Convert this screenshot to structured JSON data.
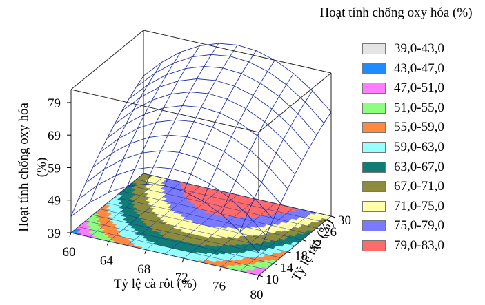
{
  "chart_data": {
    "type": "surface3d",
    "legend_title": "Hoạt tính chống oxy hóa (%)",
    "xlabel": "Tỷ lệ cà rôt (%)",
    "ylabel": "Tỷ lệ táo (%)",
    "zlabel": "Hoạt tính chống oxy hóa (%)",
    "x_ticks": [
      60,
      64,
      68,
      72,
      76,
      80
    ],
    "y_ticks": [
      10,
      14,
      18,
      22,
      26,
      30
    ],
    "z_ticks": [
      39,
      49,
      59,
      69,
      79
    ],
    "xlim": [
      60,
      80
    ],
    "ylim": [
      10,
      30
    ],
    "zlim": [
      39,
      83
    ],
    "legend_placement": "right",
    "legend": [
      {
        "label": "39,0-43,0",
        "color": "#e4e4e4"
      },
      {
        "label": "43,0-47,0",
        "color": "#1e8cff"
      },
      {
        "label": "47,0-51,0",
        "color": "#ff7bff"
      },
      {
        "label": "51,0-55,0",
        "color": "#8cff7d"
      },
      {
        "label": "55,0-59,0",
        "color": "#ff8a3d"
      },
      {
        "label": "59,0-63,0",
        "color": "#96ffff"
      },
      {
        "label": "63,0-67,0",
        "color": "#127c74"
      },
      {
        "label": "67,0-71,0",
        "color": "#8c8c3c"
      },
      {
        "label": "71,0-75,0",
        "color": "#ffffa8"
      },
      {
        "label": "75,0-79,0",
        "color": "#7a7aff"
      },
      {
        "label": "79,0-83,0",
        "color": "#ff6b6b"
      }
    ],
    "surface": {
      "x": [
        60,
        62,
        64,
        66,
        68,
        70,
        72,
        74,
        76,
        78,
        80
      ],
      "y": [
        10,
        12,
        14,
        16,
        18,
        20,
        22,
        24,
        26,
        28,
        30
      ],
      "z": [
        [
          44.0,
          49.6,
          54.0,
          57.2,
          59.2,
          60.0,
          59.6,
          58.0,
          55.2,
          51.2,
          46.0
        ],
        [
          47.4,
          53.0,
          57.4,
          60.6,
          62.6,
          63.4,
          63.0,
          61.4,
          58.6,
          54.6,
          49.4
        ],
        [
          50.6,
          56.2,
          60.6,
          63.8,
          65.8,
          66.6,
          66.2,
          64.6,
          61.8,
          57.8,
          52.6
        ],
        [
          53.6,
          59.2,
          63.6,
          66.8,
          68.8,
          69.6,
          69.2,
          67.6,
          64.8,
          60.8,
          55.6
        ],
        [
          56.4,
          62.0,
          66.4,
          69.6,
          71.6,
          72.4,
          72.0,
          70.4,
          67.6,
          63.6,
          58.4
        ],
        [
          59.0,
          64.6,
          69.0,
          72.2,
          74.2,
          75.0,
          74.6,
          73.0,
          70.2,
          66.2,
          61.0
        ],
        [
          61.4,
          67.0,
          71.4,
          74.6,
          76.6,
          77.4,
          77.0,
          75.4,
          72.6,
          68.6,
          63.4
        ],
        [
          63.6,
          69.2,
          73.6,
          76.8,
          78.8,
          79.6,
          79.2,
          77.6,
          74.8,
          70.8,
          65.6
        ],
        [
          65.6,
          71.2,
          75.6,
          78.8,
          80.8,
          81.6,
          81.2,
          79.6,
          76.8,
          72.8,
          67.6
        ],
        [
          67.4,
          73.0,
          77.4,
          80.6,
          82.6,
          83.4,
          83.0,
          81.4,
          78.6,
          74.6,
          69.4
        ],
        [
          69.0,
          74.6,
          79.0,
          82.2,
          84.2,
          85.0,
          84.6,
          83.0,
          80.2,
          76.2,
          71.0
        ]
      ]
    }
  }
}
